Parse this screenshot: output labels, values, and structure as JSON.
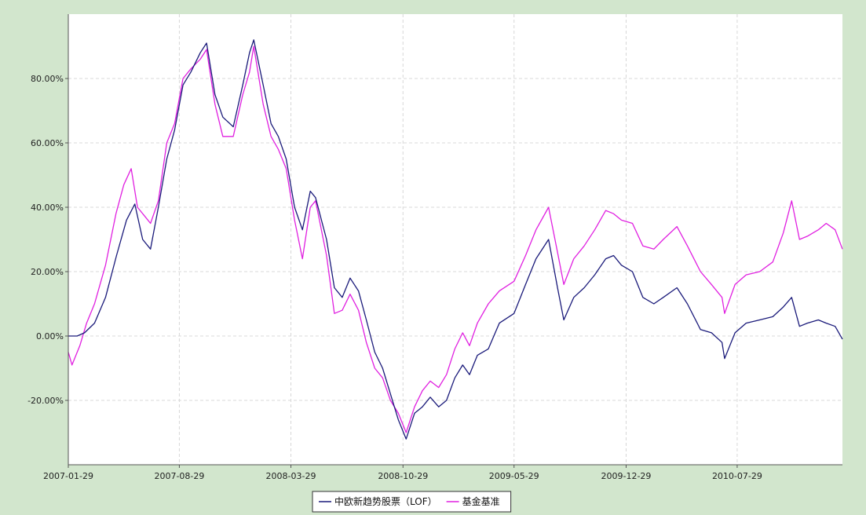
{
  "chart_data": {
    "type": "line",
    "title": "",
    "xlabel": "",
    "ylabel": "",
    "ylim": [
      -0.4,
      1.0
    ],
    "y_ticks": [
      -0.2,
      0.0,
      0.2,
      0.4,
      0.6,
      0.8
    ],
    "y_tick_labels": [
      "-20.00%",
      "0.00%",
      "20.00%",
      "40.00%",
      "60.00%",
      "80.00%"
    ],
    "x_tick_labels": [
      "2007-01-29",
      "2007-08-29",
      "2008-03-29",
      "2008-10-29",
      "2009-05-29",
      "2009-12-29",
      "2010-07-29"
    ],
    "x_range": [
      "2007-01-29",
      "2011-02-15"
    ],
    "grid": true,
    "legend_position": "bottom-center",
    "colors": {
      "background": "#d2e6cd",
      "plot": "#ffffff",
      "series_fund": "#1a1a7a",
      "series_benchmark": "#e020e0",
      "grid": "#d8d8d8"
    },
    "series": [
      {
        "name": "中欧新趋势股票（LOF）",
        "color": "#1a1a7a",
        "points": [
          [
            "2007-01-29",
            0.0
          ],
          [
            "2007-02-15",
            0.0
          ],
          [
            "2007-03-01",
            0.01
          ],
          [
            "2007-03-20",
            0.04
          ],
          [
            "2007-04-10",
            0.12
          ],
          [
            "2007-05-01",
            0.25
          ],
          [
            "2007-05-20",
            0.36
          ],
          [
            "2007-06-05",
            0.41
          ],
          [
            "2007-06-20",
            0.3
          ],
          [
            "2007-07-05",
            0.27
          ],
          [
            "2007-07-20",
            0.4
          ],
          [
            "2007-08-05",
            0.55
          ],
          [
            "2007-08-20",
            0.64
          ],
          [
            "2007-09-05",
            0.78
          ],
          [
            "2007-09-20",
            0.82
          ],
          [
            "2007-10-08",
            0.88
          ],
          [
            "2007-10-20",
            0.91
          ],
          [
            "2007-11-05",
            0.75
          ],
          [
            "2007-11-20",
            0.68
          ],
          [
            "2007-12-10",
            0.65
          ],
          [
            "2007-12-28",
            0.78
          ],
          [
            "2008-01-10",
            0.88
          ],
          [
            "2008-01-18",
            0.92
          ],
          [
            "2008-02-05",
            0.78
          ],
          [
            "2008-02-20",
            0.66
          ],
          [
            "2008-03-05",
            0.62
          ],
          [
            "2008-03-20",
            0.55
          ],
          [
            "2008-04-05",
            0.4
          ],
          [
            "2008-04-20",
            0.33
          ],
          [
            "2008-05-05",
            0.45
          ],
          [
            "2008-05-15",
            0.43
          ],
          [
            "2008-06-05",
            0.3
          ],
          [
            "2008-06-20",
            0.15
          ],
          [
            "2008-07-05",
            0.12
          ],
          [
            "2008-07-20",
            0.18
          ],
          [
            "2008-08-05",
            0.14
          ],
          [
            "2008-08-20",
            0.05
          ],
          [
            "2008-09-05",
            -0.05
          ],
          [
            "2008-09-20",
            -0.1
          ],
          [
            "2008-10-05",
            -0.18
          ],
          [
            "2008-10-20",
            -0.26
          ],
          [
            "2008-11-04",
            -0.32
          ],
          [
            "2008-11-20",
            -0.24
          ],
          [
            "2008-12-05",
            -0.22
          ],
          [
            "2008-12-20",
            -0.19
          ],
          [
            "2009-01-05",
            -0.22
          ],
          [
            "2009-01-20",
            -0.2
          ],
          [
            "2009-02-05",
            -0.13
          ],
          [
            "2009-02-20",
            -0.09
          ],
          [
            "2009-03-05",
            -0.12
          ],
          [
            "2009-03-20",
            -0.06
          ],
          [
            "2009-04-10",
            -0.04
          ],
          [
            "2009-05-01",
            0.04
          ],
          [
            "2009-05-29",
            0.07
          ],
          [
            "2009-06-20",
            0.16
          ],
          [
            "2009-07-10",
            0.24
          ],
          [
            "2009-08-03",
            0.3
          ],
          [
            "2009-08-20",
            0.15
          ],
          [
            "2009-09-01",
            0.05
          ],
          [
            "2009-09-20",
            0.12
          ],
          [
            "2009-10-10",
            0.15
          ],
          [
            "2009-10-30",
            0.19
          ],
          [
            "2009-11-20",
            0.24
          ],
          [
            "2009-12-05",
            0.25
          ],
          [
            "2009-12-20",
            0.22
          ],
          [
            "2010-01-10",
            0.2
          ],
          [
            "2010-01-30",
            0.12
          ],
          [
            "2010-02-20",
            0.1
          ],
          [
            "2010-03-10",
            0.12
          ],
          [
            "2010-04-05",
            0.15
          ],
          [
            "2010-04-25",
            0.1
          ],
          [
            "2010-05-20",
            0.02
          ],
          [
            "2010-06-10",
            0.01
          ],
          [
            "2010-06-30",
            -0.02
          ],
          [
            "2010-07-05",
            -0.07
          ],
          [
            "2010-07-25",
            0.01
          ],
          [
            "2010-08-15",
            0.04
          ],
          [
            "2010-09-10",
            0.05
          ],
          [
            "2010-10-05",
            0.06
          ],
          [
            "2010-10-25",
            0.09
          ],
          [
            "2010-11-10",
            0.12
          ],
          [
            "2010-11-25",
            0.03
          ],
          [
            "2010-12-10",
            0.04
          ],
          [
            "2010-12-31",
            0.05
          ],
          [
            "2011-01-15",
            0.04
          ],
          [
            "2011-02-01",
            0.03
          ],
          [
            "2011-02-15",
            -0.01
          ]
        ]
      },
      {
        "name": "基金基准",
        "color": "#e020e0",
        "points": [
          [
            "2007-01-29",
            -0.05
          ],
          [
            "2007-02-05",
            -0.09
          ],
          [
            "2007-02-20",
            -0.03
          ],
          [
            "2007-03-05",
            0.04
          ],
          [
            "2007-03-20",
            0.1
          ],
          [
            "2007-04-10",
            0.22
          ],
          [
            "2007-04-30",
            0.38
          ],
          [
            "2007-05-15",
            0.47
          ],
          [
            "2007-05-29",
            0.52
          ],
          [
            "2007-06-10",
            0.4
          ],
          [
            "2007-06-25",
            0.37
          ],
          [
            "2007-07-05",
            0.35
          ],
          [
            "2007-07-20",
            0.42
          ],
          [
            "2007-08-05",
            0.6
          ],
          [
            "2007-08-20",
            0.66
          ],
          [
            "2007-09-05",
            0.8
          ],
          [
            "2007-09-20",
            0.83
          ],
          [
            "2007-10-08",
            0.86
          ],
          [
            "2007-10-20",
            0.89
          ],
          [
            "2007-11-05",
            0.72
          ],
          [
            "2007-11-20",
            0.62
          ],
          [
            "2007-12-10",
            0.62
          ],
          [
            "2007-12-28",
            0.75
          ],
          [
            "2008-01-10",
            0.82
          ],
          [
            "2008-01-18",
            0.9
          ],
          [
            "2008-02-05",
            0.72
          ],
          [
            "2008-02-20",
            0.62
          ],
          [
            "2008-03-05",
            0.58
          ],
          [
            "2008-03-20",
            0.52
          ],
          [
            "2008-04-05",
            0.36
          ],
          [
            "2008-04-20",
            0.24
          ],
          [
            "2008-05-05",
            0.4
          ],
          [
            "2008-05-15",
            0.42
          ],
          [
            "2008-06-05",
            0.25
          ],
          [
            "2008-06-20",
            0.07
          ],
          [
            "2008-07-05",
            0.08
          ],
          [
            "2008-07-20",
            0.13
          ],
          [
            "2008-08-05",
            0.08
          ],
          [
            "2008-08-20",
            -0.02
          ],
          [
            "2008-09-05",
            -0.1
          ],
          [
            "2008-09-20",
            -0.13
          ],
          [
            "2008-10-05",
            -0.2
          ],
          [
            "2008-10-20",
            -0.24
          ],
          [
            "2008-11-04",
            -0.3
          ],
          [
            "2008-11-20",
            -0.22
          ],
          [
            "2008-12-05",
            -0.17
          ],
          [
            "2008-12-20",
            -0.14
          ],
          [
            "2009-01-05",
            -0.16
          ],
          [
            "2009-01-20",
            -0.12
          ],
          [
            "2009-02-05",
            -0.04
          ],
          [
            "2009-02-20",
            0.01
          ],
          [
            "2009-03-05",
            -0.03
          ],
          [
            "2009-03-20",
            0.04
          ],
          [
            "2009-04-10",
            0.1
          ],
          [
            "2009-05-01",
            0.14
          ],
          [
            "2009-05-29",
            0.17
          ],
          [
            "2009-06-20",
            0.25
          ],
          [
            "2009-07-10",
            0.33
          ],
          [
            "2009-08-03",
            0.4
          ],
          [
            "2009-08-20",
            0.26
          ],
          [
            "2009-09-01",
            0.16
          ],
          [
            "2009-09-20",
            0.24
          ],
          [
            "2009-10-10",
            0.28
          ],
          [
            "2009-10-30",
            0.33
          ],
          [
            "2009-11-20",
            0.39
          ],
          [
            "2009-12-05",
            0.38
          ],
          [
            "2009-12-20",
            0.36
          ],
          [
            "2010-01-10",
            0.35
          ],
          [
            "2010-01-30",
            0.28
          ],
          [
            "2010-02-20",
            0.27
          ],
          [
            "2010-03-10",
            0.3
          ],
          [
            "2010-04-05",
            0.34
          ],
          [
            "2010-04-25",
            0.28
          ],
          [
            "2010-05-20",
            0.2
          ],
          [
            "2010-06-10",
            0.16
          ],
          [
            "2010-06-30",
            0.12
          ],
          [
            "2010-07-05",
            0.07
          ],
          [
            "2010-07-25",
            0.16
          ],
          [
            "2010-08-15",
            0.19
          ],
          [
            "2010-09-10",
            0.2
          ],
          [
            "2010-10-05",
            0.23
          ],
          [
            "2010-10-25",
            0.32
          ],
          [
            "2010-11-10",
            0.42
          ],
          [
            "2010-11-25",
            0.3
          ],
          [
            "2010-12-10",
            0.31
          ],
          [
            "2010-12-31",
            0.33
          ],
          [
            "2011-01-15",
            0.35
          ],
          [
            "2011-02-01",
            0.33
          ],
          [
            "2011-02-15",
            0.27
          ]
        ]
      }
    ]
  }
}
